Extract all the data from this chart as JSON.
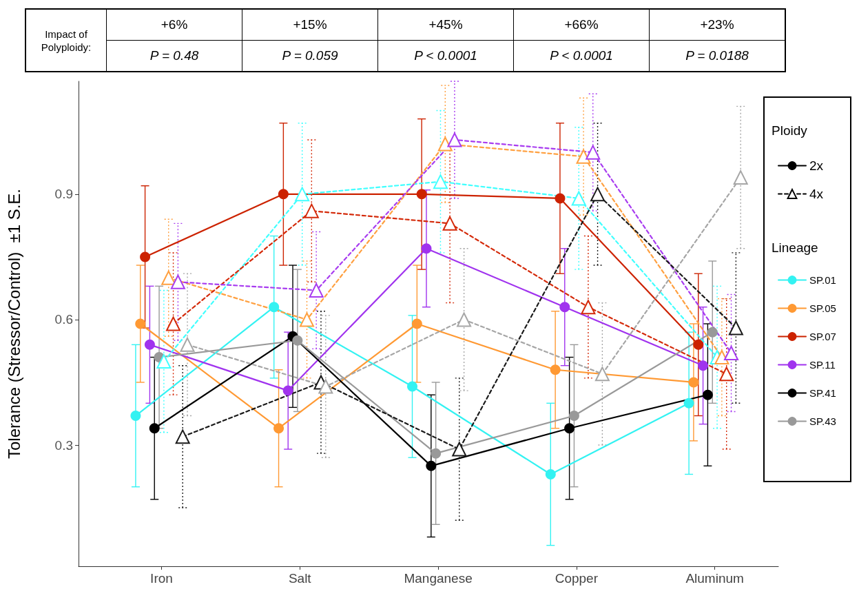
{
  "chart_data": {
    "type": "line",
    "categories": [
      "Iron",
      "Salt",
      "Manganese",
      "Copper",
      "Aluminum"
    ],
    "ylabel": "Tolerance (Stressor/Control)  ±1 S.E.",
    "ylim": [
      0.01,
      1.17
    ],
    "yticks": [
      0.3,
      0.6,
      0.9
    ],
    "grid": false,
    "legend": "right",
    "legend_title": [
      "Ploidy",
      "Lineage"
    ],
    "annotations": [
      "Impact of Polyploidy:",
      "+6%",
      "P = 0.48",
      "+15%",
      "P = 0.059",
      "+45%",
      "P < 0.0001",
      "+66%",
      "P < 0.0001",
      "+23%",
      "P = 0.0188"
    ],
    "series": [
      {
        "name": "SP.01",
        "color": "#33f2f2",
        "marker": "circle",
        "line_style": "solid",
        "values": [
          0.37,
          0.63,
          0.44,
          0.23,
          0.4
        ],
        "errors": [
          0.17,
          0.17,
          0.17,
          0.17,
          0.17
        ]
      },
      {
        "name": "SP.05",
        "color": "#ff9933",
        "marker": "circle",
        "line_style": "solid",
        "values": [
          0.59,
          0.34,
          0.59,
          0.48,
          0.45
        ],
        "errors": [
          0.14,
          0.14,
          0.14,
          0.14,
          0.14
        ]
      },
      {
        "name": "SP.07",
        "color": "#cc2200",
        "marker": "circle",
        "line_style": "solid",
        "values": [
          0.75,
          0.9,
          0.9,
          0.89,
          0.54
        ],
        "errors": [
          0.17,
          0.17,
          0.18,
          0.18,
          0.17
        ]
      },
      {
        "name": "SP.11",
        "color": "#a033ee",
        "marker": "circle",
        "line_style": "solid",
        "values": [
          0.54,
          0.43,
          0.77,
          0.63,
          0.49
        ],
        "errors": [
          0.14,
          0.14,
          0.14,
          0.14,
          0.14
        ]
      },
      {
        "name": "SP.41",
        "color": "#000000",
        "marker": "circle",
        "line_style": "solid",
        "values": [
          0.34,
          0.56,
          0.25,
          0.34,
          0.42
        ],
        "errors": [
          0.17,
          0.17,
          0.17,
          0.17,
          0.17
        ]
      },
      {
        "name": "SP.43",
        "color": "#999999",
        "marker": "circle",
        "line_style": "solid",
        "values": [
          0.51,
          0.55,
          0.28,
          0.37,
          0.57
        ],
        "errors": [
          0.17,
          0.17,
          0.17,
          0.17,
          0.17
        ]
      },
      {
        "color": "#40ffff",
        "marker": "triangle",
        "line_style": "dashed",
        "values": [
          0.5,
          0.9,
          0.93,
          0.89,
          0.51
        ],
        "errors": [
          0.17,
          0.17,
          0.17,
          0.17,
          0.17
        ]
      },
      {
        "color": "#ffa040",
        "marker": "triangle",
        "line_style": "dashed",
        "values": [
          0.7,
          0.6,
          1.02,
          0.99,
          0.51
        ],
        "errors": [
          0.14,
          0.14,
          0.14,
          0.14,
          0.14
        ]
      },
      {
        "color": "#d42a0a",
        "marker": "triangle",
        "line_style": "dashed",
        "values": [
          0.59,
          0.86,
          0.83,
          0.63,
          0.47
        ],
        "errors": [
          0.17,
          0.17,
          0.19,
          0.17,
          0.18
        ]
      },
      {
        "color": "#a83cf0",
        "marker": "triangle",
        "line_style": "dashed",
        "values": [
          0.69,
          0.67,
          1.03,
          1.0,
          0.52
        ],
        "errors": [
          0.14,
          0.14,
          0.14,
          0.14,
          0.14
        ]
      },
      {
        "color": "#1a1a1a",
        "marker": "triangle",
        "line_style": "dashed",
        "values": [
          0.32,
          0.45,
          0.29,
          0.9,
          0.58
        ],
        "errors": [
          0.17,
          0.17,
          0.17,
          0.17,
          0.18
        ]
      },
      {
        "color": "#a6a6a6",
        "marker": "triangle",
        "line_style": "dashed",
        "values": [
          0.54,
          0.44,
          0.6,
          0.47,
          0.94
        ],
        "errors": [
          0.17,
          0.17,
          0.17,
          0.17,
          0.17
        ]
      },
      {
        "name": "2x",
        "color": "#000000",
        "marker": "circle",
        "line_style": "solid",
        "values": [
          null,
          null,
          null,
          null,
          null
        ]
      },
      {
        "name": "4x",
        "color": "#000000",
        "marker": "triangle",
        "line_style": "dashed",
        "values": [
          null,
          null,
          null,
          null,
          null
        ]
      }
    ]
  }
}
